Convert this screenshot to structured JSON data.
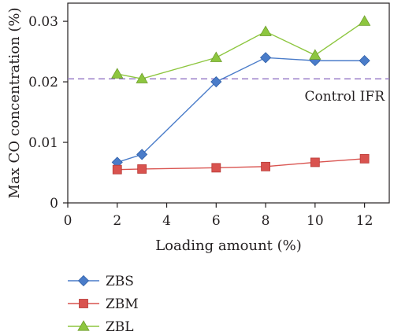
{
  "chart_data": {
    "type": "line",
    "xlabel": "Loading amount (%)",
    "ylabel": "Max CO  concentration (%)",
    "xlim": [
      0,
      13
    ],
    "ylim": [
      0,
      0.033
    ],
    "xticks": [
      0,
      2,
      4,
      6,
      8,
      10,
      12
    ],
    "yticks": [
      0,
      0.01,
      0.02,
      0.03
    ],
    "xtick_labels": [
      "0",
      "2",
      "4",
      "6",
      "8",
      "10",
      "12"
    ],
    "ytick_labels": [
      "0",
      "0.01",
      "0.02",
      "0.03"
    ],
    "grid": false,
    "legend_position": "bottom-left, below plot",
    "reference_line": {
      "y": 0.0205,
      "label": "Control IFR",
      "color": "#9b7fc9",
      "style": "dashed"
    },
    "series": [
      {
        "name": "ZBS",
        "marker": "diamond",
        "color": "#4a7cc9",
        "x": [
          2,
          3,
          6,
          8,
          10,
          12
        ],
        "y": [
          0.0067,
          0.008,
          0.02,
          0.024,
          0.0235,
          0.0235
        ]
      },
      {
        "name": "ZBM",
        "marker": "square",
        "color": "#d9534f",
        "x": [
          2,
          3,
          6,
          8,
          10,
          12
        ],
        "y": [
          0.0055,
          0.0056,
          0.0058,
          0.006,
          0.0067,
          0.0073
        ]
      },
      {
        "name": "ZBL",
        "marker": "triangle",
        "color": "#8dc63f",
        "x": [
          2,
          3,
          6,
          8,
          10,
          12
        ],
        "y": [
          0.0213,
          0.0205,
          0.024,
          0.0283,
          0.0244,
          0.03
        ]
      }
    ]
  }
}
